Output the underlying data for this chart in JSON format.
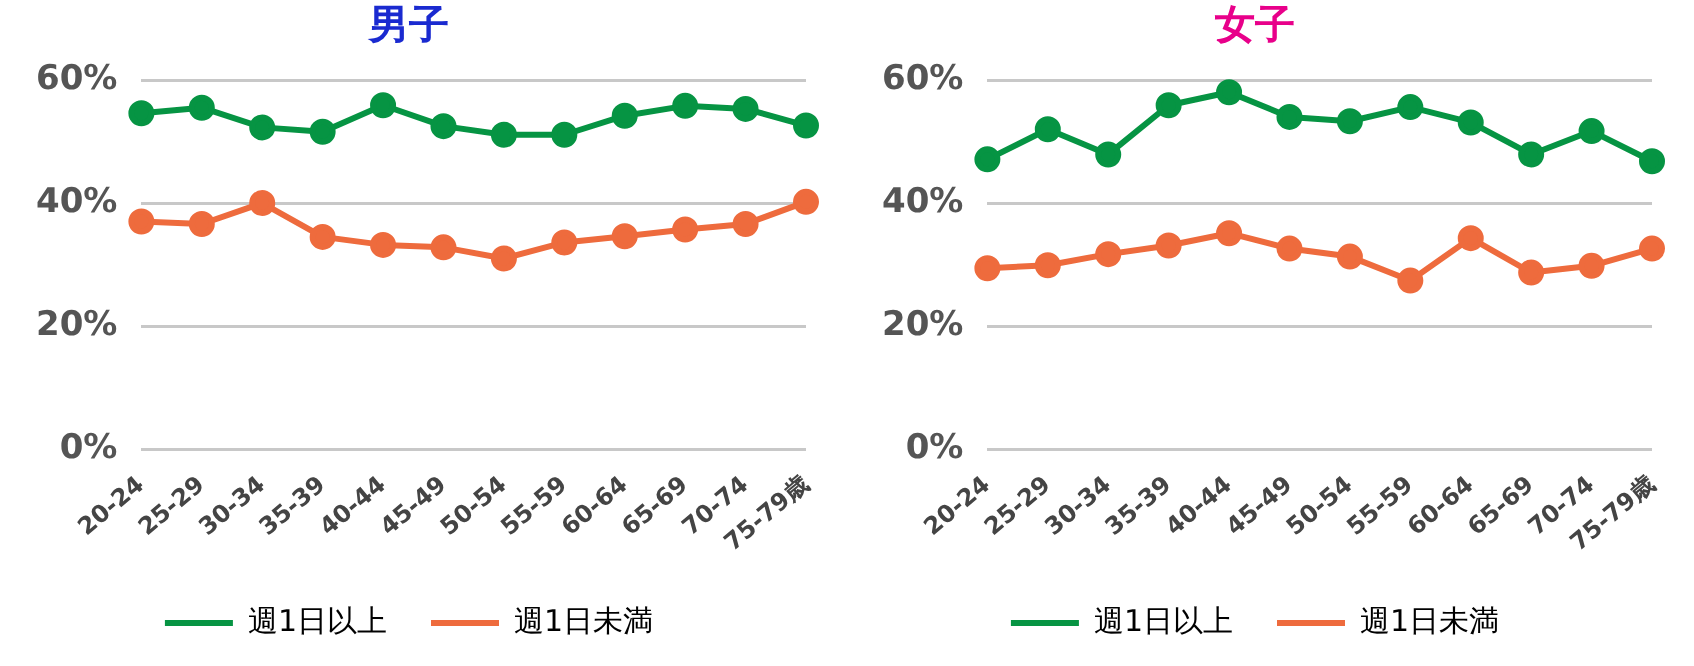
{
  "chart_data": [
    {
      "type": "line",
      "title": "男子",
      "categories": [
        "20-24",
        "25-29",
        "30-34",
        "35-39",
        "40-44",
        "45-49",
        "50-54",
        "55-59",
        "60-64",
        "65-69",
        "70-74",
        "75-79歳"
      ],
      "series": [
        {
          "name": "週1日以上",
          "color": "#069443",
          "values": [
            54.6,
            55.5,
            52.3,
            51.6,
            55.9,
            52.5,
            51.1,
            51.1,
            54.2,
            55.8,
            55.3,
            52.6
          ]
        },
        {
          "name": "週1日未満",
          "color": "#ee6b3d",
          "values": [
            37.0,
            36.6,
            40.0,
            34.5,
            33.2,
            32.8,
            31.0,
            33.6,
            34.6,
            35.7,
            36.6,
            40.2
          ]
        }
      ],
      "ylim": [
        0,
        60
      ],
      "yticks": [
        {
          "value": 0,
          "label": "0%"
        },
        {
          "value": 20,
          "label": "20%"
        },
        {
          "value": 40,
          "label": "40%"
        },
        {
          "value": 60,
          "label": "60%"
        }
      ],
      "grid": "y",
      "legend": "bottom",
      "marker": "circle",
      "line_style": "solid"
    },
    {
      "type": "line",
      "title": "女子",
      "categories": [
        "20-24",
        "25-29",
        "30-34",
        "35-39",
        "40-44",
        "45-49",
        "50-54",
        "55-59",
        "60-64",
        "65-69",
        "70-74",
        "75-79歳"
      ],
      "series": [
        {
          "name": "週1日以上",
          "color": "#069443",
          "values": [
            47.1,
            52.0,
            47.9,
            55.9,
            58.0,
            54.0,
            53.3,
            55.6,
            53.1,
            47.9,
            51.7,
            46.8
          ]
        },
        {
          "name": "週1日未満",
          "color": "#ee6b3d",
          "values": [
            29.4,
            29.9,
            31.7,
            33.1,
            35.1,
            32.6,
            31.3,
            27.4,
            34.3,
            28.7,
            29.8,
            32.6
          ]
        }
      ],
      "ylim": [
        0,
        60
      ],
      "yticks": [
        {
          "value": 0,
          "label": "0%"
        },
        {
          "value": 20,
          "label": "20%"
        },
        {
          "value": 40,
          "label": "40%"
        },
        {
          "value": 60,
          "label": "60%"
        }
      ],
      "grid": "y",
      "legend": "bottom",
      "marker": "circle",
      "line_style": "solid"
    }
  ]
}
